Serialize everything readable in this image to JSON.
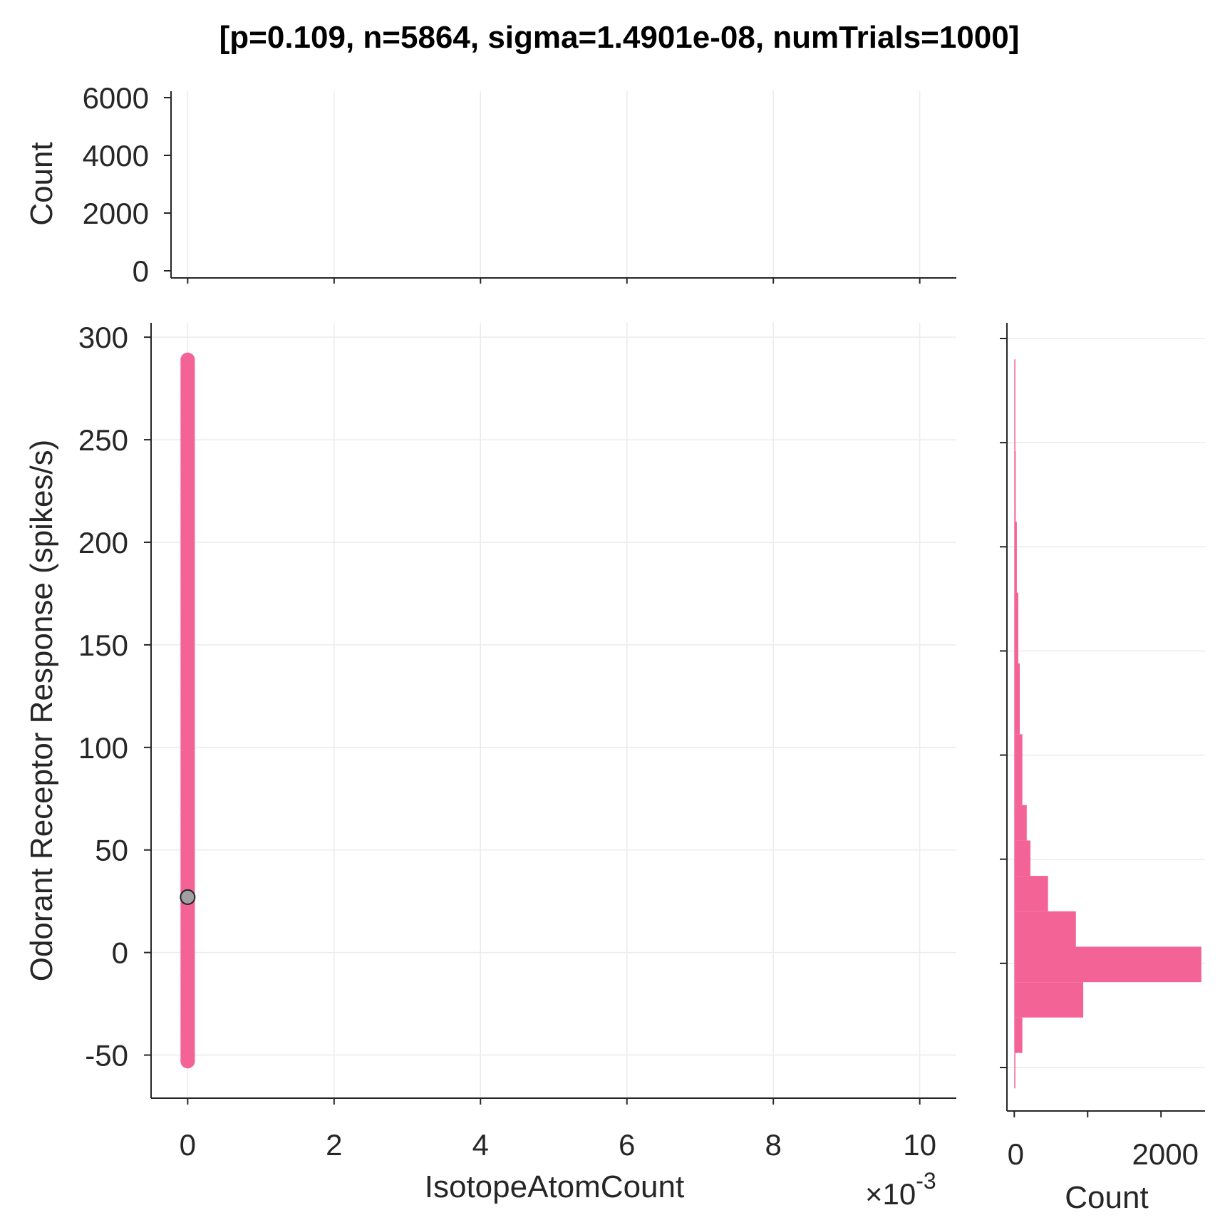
{
  "title": "[p=0.109, n=5864, sigma=1.4901e-08, numTrials=1000]",
  "colors": {
    "accent": "#f36396",
    "median_point": "#a0a0a0",
    "axis": "#262626",
    "grid": "#ebebeb"
  },
  "chart_data": [
    {
      "panel": "top-marginal-histogram",
      "type": "bar",
      "ylabel": "Count",
      "ylim": [
        0,
        6000
      ],
      "yticks": [
        "0",
        "2000",
        "4000",
        "6000"
      ],
      "xlim": [
        -0.0005,
        0.0105
      ],
      "values": [],
      "grid": true
    },
    {
      "panel": "main-scatter",
      "type": "scatter",
      "xlabel": "IsotopeAtomCount",
      "ylabel": "Odorant Receptor Response (spikes/s)",
      "x_exponent_base": "×10",
      "x_exponent_power": "-3",
      "xticks": [
        "0",
        "2",
        "4",
        "6",
        "8",
        "10"
      ],
      "xlim": [
        -0.0005,
        0.0105
      ],
      "yticks": [
        "300",
        "250",
        "200",
        "150",
        "100",
        "50",
        "0",
        "-50"
      ],
      "ylim": [
        -71,
        307
      ],
      "points_x": 0,
      "points_y_range": [
        -53,
        289
      ],
      "median_point": {
        "x": 0,
        "y": 27
      },
      "grid": true
    },
    {
      "panel": "right-marginal-histogram",
      "type": "bar",
      "orientation": "horizontal",
      "xlabel": "Count",
      "xticks": [
        "0",
        "2000"
      ],
      "xlim": [
        -100,
        2600
      ],
      "bins": [
        {
          "y0": 246,
          "y1": 290,
          "count": 10
        },
        {
          "y0": 212,
          "y1": 246,
          "count": 20
        },
        {
          "y0": 178,
          "y1": 212,
          "count": 35
        },
        {
          "y0": 144,
          "y1": 178,
          "count": 55
        },
        {
          "y0": 110,
          "y1": 144,
          "count": 75
        },
        {
          "y0": 76,
          "y1": 110,
          "count": 110
        },
        {
          "y0": 59,
          "y1": 76,
          "count": 170
        },
        {
          "y0": 42,
          "y1": 59,
          "count": 220
        },
        {
          "y0": 25,
          "y1": 42,
          "count": 460
        },
        {
          "y0": 8,
          "y1": 25,
          "count": 840
        },
        {
          "y0": -9,
          "y1": 8,
          "count": 2550
        },
        {
          "y0": -26,
          "y1": -9,
          "count": 940
        },
        {
          "y0": -43,
          "y1": -26,
          "count": 110
        },
        {
          "y0": -60,
          "y1": -43,
          "count": 15
        }
      ],
      "grid": true
    }
  ]
}
